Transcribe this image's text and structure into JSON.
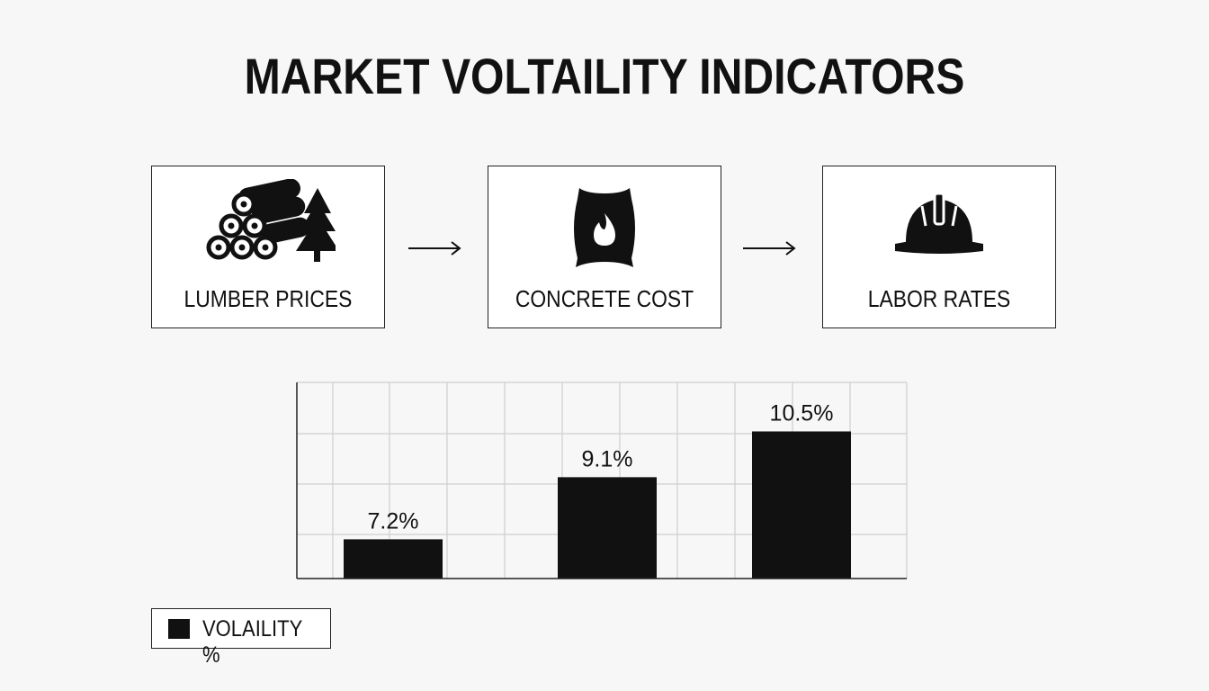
{
  "title": "MARKET VOLTAILITY INDICATORS",
  "cards": [
    {
      "label": "LUMBER PRICES",
      "icon": "lumber-logs-tree-icon"
    },
    {
      "label": "CONCRETE COST",
      "icon": "cement-bag-icon"
    },
    {
      "label": "LABOR RATES",
      "icon": "hard-hat-icon"
    }
  ],
  "chart_data": {
    "type": "bar",
    "categories": [
      "LUMBER PRICES",
      "CONCRETE COST",
      "LABOR RATES"
    ],
    "series": [
      {
        "name": "VOLAILITY %",
        "values": [
          7.2,
          9.1,
          10.5
        ],
        "labels": [
          "7.2%",
          "9.1%",
          "10.5%"
        ]
      }
    ],
    "ylim": [
      6,
      12
    ],
    "grid": true,
    "legend": "bottom-left",
    "colors": {
      "bar": "#111111",
      "grid": "#cfcfcf",
      "axis": "#222222"
    }
  },
  "legend": {
    "label": "VOLAILITY %"
  }
}
